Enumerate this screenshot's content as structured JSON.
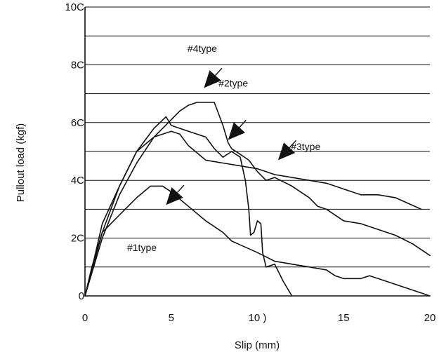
{
  "chart_data": {
    "type": "line",
    "title": "",
    "xlabel": "Slip (mm)",
    "ylabel": "Pullout load (kgf)",
    "xlim": [
      0,
      20
    ],
    "ylim": [
      0,
      100
    ],
    "grid": "horizontal",
    "x_ticks": [
      "0",
      "5",
      "10",
      "15",
      "20"
    ],
    "y_ticks": [
      "0",
      "20",
      "40",
      "60",
      "80",
      "100"
    ],
    "y_tick_display": [
      "0",
      "2C",
      "4C",
      "6C",
      "8C",
      "10C"
    ],
    "x_tick_display": [
      "0",
      "5",
      "10 )",
      "15",
      "20"
    ],
    "series": [
      {
        "name": "#1type",
        "x": [
          0,
          0.4,
          1,
          2,
          3,
          3.8,
          4.5,
          5,
          6,
          7,
          8,
          8.5,
          10,
          11,
          13,
          14,
          14.5,
          15,
          16,
          16.5,
          17,
          18,
          19,
          20
        ],
        "y": [
          0,
          10,
          22,
          28,
          34,
          38,
          38,
          36,
          31,
          26,
          22,
          19,
          15,
          12,
          10,
          9,
          7,
          6,
          6,
          7,
          6,
          4,
          2,
          0
        ]
      },
      {
        "name": "#2type",
        "x": [
          0,
          0.5,
          1,
          2,
          3,
          4,
          4.7,
          5,
          6,
          7,
          7.5,
          8,
          8.5,
          9,
          9.3,
          9.5,
          9.6,
          9.8,
          10,
          10.2,
          10.3,
          10.5,
          11,
          11.5,
          12
        ],
        "y": [
          0,
          12,
          25,
          38,
          50,
          58,
          62,
          59,
          57,
          55,
          51,
          48,
          50,
          48,
          40,
          30,
          21,
          22,
          26,
          25,
          15,
          10,
          11,
          5,
          0
        ]
      },
      {
        "name": "#3type",
        "x": [
          0,
          1,
          2,
          3,
          4,
          5,
          5.5,
          6,
          7,
          8,
          9,
          10,
          10.5,
          11,
          12,
          13,
          14,
          14.5,
          15,
          16,
          17,
          18,
          19.5
        ],
        "y": [
          0,
          22,
          38,
          50,
          55,
          57,
          56,
          52,
          47,
          46,
          45,
          44,
          43,
          42,
          41,
          40,
          39,
          38,
          37,
          35,
          35,
          34,
          30
        ]
      },
      {
        "name": "#4type",
        "x": [
          0,
          1,
          2,
          3,
          4,
          5,
          5.5,
          6,
          6.5,
          7.5,
          8,
          8.3,
          8.5,
          9,
          9.5,
          10,
          10.5,
          11,
          12,
          13,
          13.5,
          14,
          15,
          16,
          17,
          18,
          19,
          20
        ],
        "y": [
          0,
          20,
          35,
          46,
          55,
          61,
          64,
          66,
          67,
          67,
          59,
          53,
          51,
          49,
          47,
          43,
          40,
          41,
          38,
          34,
          31,
          30,
          26,
          25,
          23,
          21,
          18,
          14
        ]
      }
    ],
    "annotations": [
      {
        "text": "#4type",
        "x": 6.8,
        "y": 84.5,
        "arrow_to_x": 6.9,
        "arrow_to_y": 72
      },
      {
        "text": "#2type",
        "x": 8.6,
        "y": 72.5,
        "arrow_to_x": 8.3,
        "arrow_to_y": 54
      },
      {
        "text": "#3type",
        "x": 12.8,
        "y": 50.5,
        "arrow_to_x": 11.2,
        "arrow_to_y": 47
      },
      {
        "text": "#1type",
        "x": 3.3,
        "y": 15.5,
        "arrow_to_x": 4.7,
        "arrow_to_y": 31.5
      }
    ]
  }
}
